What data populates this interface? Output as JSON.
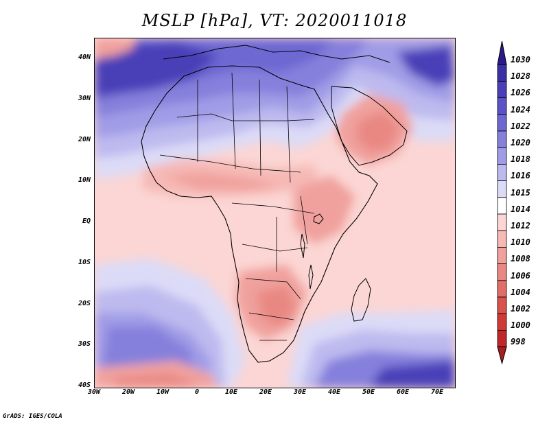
{
  "title": "MSLP [hPa], VT: 2020011018",
  "credit": "GrADS: IGES/COLA",
  "lat_labels": [
    "40N",
    "30N",
    "20N",
    "10N",
    "EQ",
    "10S",
    "20S",
    "30S",
    "40S"
  ],
  "lon_labels": [
    "30W",
    "20W",
    "10W",
    "0",
    "10E",
    "20E",
    "30E",
    "40E",
    "50E",
    "60E",
    "70E"
  ],
  "colorbar": {
    "levels": [
      "1030",
      "1028",
      "1026",
      "1024",
      "1022",
      "1020",
      "1018",
      "1016",
      "1015",
      "1014",
      "1012",
      "1010",
      "1008",
      "1006",
      "1004",
      "1002",
      "1000",
      "998"
    ],
    "colors": [
      "#2a1a8c",
      "#3b2fa6",
      "#4a3fb8",
      "#5a52c6",
      "#6d67d2",
      "#8580dc",
      "#a09ce6",
      "#bdbaef",
      "#dcdbf7",
      "#ffffff",
      "#fbd6d4",
      "#f6b9b5",
      "#f0a19d",
      "#e98883",
      "#e26e69",
      "#d9524e",
      "#cf3a36",
      "#c1272a",
      "#a81d20"
    ]
  },
  "map": {
    "region": "Africa",
    "colors": {
      "deep_high": "#3b2fa6",
      "high": "#6d67d2",
      "mid_high": "#a09ce6",
      "light_high": "#dcdbf7",
      "neutral": "#ffffff",
      "light_low": "#fbd6d4",
      "low": "#f6b9b5",
      "mid_low": "#f0a19d",
      "deep_low": "#e98883"
    }
  }
}
